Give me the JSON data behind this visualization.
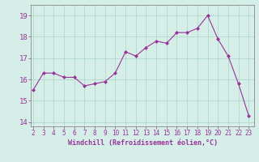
{
  "x": [
    2,
    3,
    4,
    5,
    6,
    7,
    8,
    9,
    10,
    11,
    12,
    13,
    14,
    15,
    16,
    17,
    18,
    19,
    20,
    21,
    22,
    23
  ],
  "y": [
    15.5,
    16.3,
    16.3,
    16.1,
    16.1,
    15.7,
    15.8,
    15.9,
    16.3,
    17.3,
    17.1,
    17.5,
    17.8,
    17.7,
    18.2,
    18.2,
    18.4,
    19.0,
    17.9,
    17.1,
    15.8,
    14.3
  ],
  "line_color": "#993399",
  "marker_color": "#993399",
  "bg_color": "#d5eee8",
  "grid_color": "#b0d8cc",
  "xlabel": "Windchill (Refroidissement éolien,°C)",
  "xlabel_color": "#993399",
  "tick_color": "#993399",
  "spine_color": "#888888",
  "ylim": [
    13.8,
    19.5
  ],
  "xlim": [
    1.8,
    23.5
  ],
  "yticks": [
    14,
    15,
    16,
    17,
    18,
    19
  ],
  "xticks": [
    2,
    3,
    4,
    5,
    6,
    7,
    8,
    9,
    10,
    11,
    12,
    13,
    14,
    15,
    16,
    17,
    18,
    19,
    20,
    21,
    22,
    23
  ],
  "figsize": [
    3.2,
    2.0
  ],
  "dpi": 100
}
